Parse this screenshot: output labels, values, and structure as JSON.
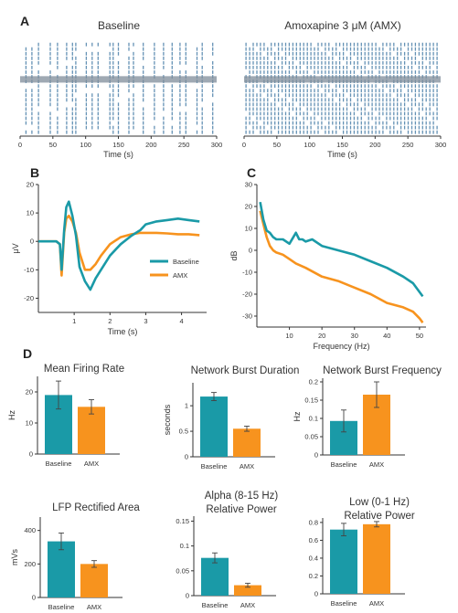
{
  "colors": {
    "baseline": "#1a9aa7",
    "amx": "#f7931e",
    "raster": "#4a7fa8",
    "axis": "#333333"
  },
  "panels": {
    "a": "A",
    "b": "B",
    "c": "C",
    "d": "D"
  },
  "chart_data": [
    {
      "id": "raster-baseline",
      "type": "scatter",
      "title": "Baseline",
      "xlabel": "Time (s)",
      "xticks": [
        0,
        50,
        100,
        150,
        200,
        250,
        300
      ],
      "xlim": [
        0,
        300
      ],
      "burst_times": [
        9,
        18,
        28,
        46,
        57,
        71,
        80,
        85,
        101,
        110,
        119,
        137,
        142,
        150,
        166,
        173,
        188,
        205,
        219,
        232,
        244,
        253,
        270,
        278,
        294
      ]
    },
    {
      "id": "raster-amx",
      "type": "scatter",
      "title": "Amoxapine 3 μM (AMX)",
      "xlabel": "Time (s)",
      "xticks": [
        0,
        50,
        100,
        150,
        200,
        250,
        300
      ],
      "xlim": [
        0,
        300
      ],
      "burst_interval_s": 5.5
    },
    {
      "id": "lfp-trace",
      "type": "line",
      "xlabel": "Time (s)",
      "ylabel": "μV",
      "xlim": [
        0,
        4.7
      ],
      "ylim": [
        -25,
        20
      ],
      "xticks": [
        1,
        2,
        3,
        4
      ],
      "yticks": [
        20,
        10,
        0,
        -10,
        -20
      ],
      "legend_position": "right",
      "series": [
        {
          "name": "Baseline",
          "x": [
            0,
            0.5,
            0.6,
            0.65,
            0.72,
            0.78,
            0.85,
            0.95,
            1.05,
            1.15,
            1.3,
            1.45,
            1.6,
            1.75,
            2.0,
            2.3,
            2.6,
            2.85,
            3.0,
            3.3,
            3.6,
            3.9,
            4.2,
            4.5
          ],
          "y": [
            0,
            0,
            -1,
            -10,
            4,
            12,
            14,
            9,
            2,
            -9,
            -14,
            -17,
            -13,
            -10,
            -5,
            -1,
            2,
            4,
            6,
            7,
            7.5,
            8,
            7.5,
            7
          ]
        },
        {
          "name": "AMX",
          "x": [
            0,
            0.5,
            0.6,
            0.65,
            0.72,
            0.78,
            0.85,
            0.95,
            1.05,
            1.15,
            1.3,
            1.45,
            1.6,
            1.75,
            2.0,
            2.3,
            2.6,
            2.85,
            3.0,
            3.3,
            3.6,
            3.9,
            4.2,
            4.5
          ],
          "y": [
            0,
            0,
            -1,
            -12,
            3,
            8,
            9,
            7,
            3,
            -4,
            -10,
            -10,
            -8,
            -5,
            -1,
            1.5,
            2.5,
            3,
            3,
            3,
            2.8,
            2.5,
            2.5,
            2.2
          ]
        }
      ]
    },
    {
      "id": "psd",
      "type": "line",
      "xlabel": "Frequency (Hz)",
      "ylabel": "dB",
      "xlim": [
        0,
        52
      ],
      "ylim": [
        -35,
        30
      ],
      "xticks": [
        10,
        20,
        30,
        40,
        50
      ],
      "yticks": [
        30,
        20,
        10,
        0,
        -10,
        -20,
        -30
      ],
      "series": [
        {
          "name": "Baseline",
          "x": [
            1,
            2,
            3,
            4,
            5,
            6,
            8,
            10,
            12,
            13,
            14,
            15,
            17,
            20,
            25,
            30,
            35,
            40,
            45,
            48,
            50,
            51
          ],
          "y": [
            22,
            14,
            9,
            8,
            6,
            5,
            5,
            3,
            8,
            5,
            5,
            4,
            5,
            2,
            0,
            -2,
            -5,
            -8,
            -12,
            -15,
            -19,
            -21
          ]
        },
        {
          "name": "AMX",
          "x": [
            1,
            2,
            3,
            4,
            5,
            6,
            8,
            10,
            12,
            15,
            20,
            25,
            30,
            35,
            40,
            45,
            48,
            50,
            51
          ],
          "y": [
            18,
            12,
            6,
            2,
            0,
            -1,
            -2,
            -4,
            -6,
            -8,
            -12,
            -14,
            -17,
            -20,
            -24,
            -26,
            -28,
            -31,
            -33
          ]
        }
      ]
    },
    {
      "id": "mean-firing-rate",
      "type": "bar",
      "title": "Mean Firing Rate",
      "ylabel": "Hz",
      "categories": [
        "Baseline",
        "AMX"
      ],
      "values": [
        19,
        15.2
      ],
      "errors": [
        4.5,
        2.3
      ],
      "ylim": [
        0,
        25
      ],
      "yticks": [
        0,
        10,
        20
      ],
      "tick_labels": [
        "0",
        "10",
        "20"
      ]
    },
    {
      "id": "network-burst-duration",
      "type": "bar",
      "title": "Network Burst Duration",
      "ylabel": "seconds",
      "categories": [
        "Baseline",
        "AMX"
      ],
      "values": [
        1.18,
        0.55
      ],
      "errors": [
        0.08,
        0.05
      ],
      "ylim": [
        0,
        1.45
      ],
      "yticks": [
        0,
        0.5,
        1
      ],
      "tick_labels": [
        "0",
        "0.5",
        "1"
      ]
    },
    {
      "id": "network-burst-frequency",
      "type": "bar",
      "title": "Network Burst Frequency",
      "ylabel": "Hz",
      "categories": [
        "Baseline",
        "AMX"
      ],
      "values": [
        0.093,
        0.165
      ],
      "errors": [
        0.03,
        0.035
      ],
      "ylim": [
        0,
        0.21
      ],
      "yticks": [
        0,
        0.05,
        0.1,
        0.15,
        0.2
      ],
      "tick_labels": [
        "0",
        "0.05",
        "0.1",
        "0.15",
        "0.2"
      ]
    },
    {
      "id": "lfp-rectified-area",
      "type": "bar",
      "title": "LFP Rectified Area",
      "ylabel": "mVs",
      "categories": [
        "Baseline",
        "AMX"
      ],
      "values": [
        335,
        200
      ],
      "errors": [
        50,
        20
      ],
      "ylim": [
        0,
        480
      ],
      "yticks": [
        0,
        200,
        400
      ],
      "tick_labels": [
        "0",
        "200",
        "400"
      ]
    },
    {
      "id": "alpha-relative-power",
      "type": "bar",
      "title": [
        "Alpha (8-15 Hz)",
        "Relative Power"
      ],
      "ylabel": "",
      "categories": [
        "Baseline",
        "AMX"
      ],
      "values": [
        0.076,
        0.021
      ],
      "errors": [
        0.01,
        0.004
      ],
      "ylim": [
        0,
        0.16
      ],
      "yticks": [
        0,
        0.05,
        0.1,
        0.15
      ],
      "tick_labels": [
        "0",
        "0.05",
        "0.1",
        "0.15"
      ]
    },
    {
      "id": "low-relative-power",
      "type": "bar",
      "title": [
        "Low (0-1 Hz)",
        "Relative Power"
      ],
      "ylabel": "",
      "categories": [
        "Baseline",
        "AMX"
      ],
      "values": [
        0.72,
        0.78
      ],
      "errors": [
        0.07,
        0.03
      ],
      "ylim": [
        0,
        0.85
      ],
      "yticks": [
        0,
        0.2,
        0.4,
        0.6,
        0.8
      ],
      "tick_labels": [
        "0",
        "0.2",
        "0.4",
        "0.6",
        "0.8"
      ]
    }
  ]
}
